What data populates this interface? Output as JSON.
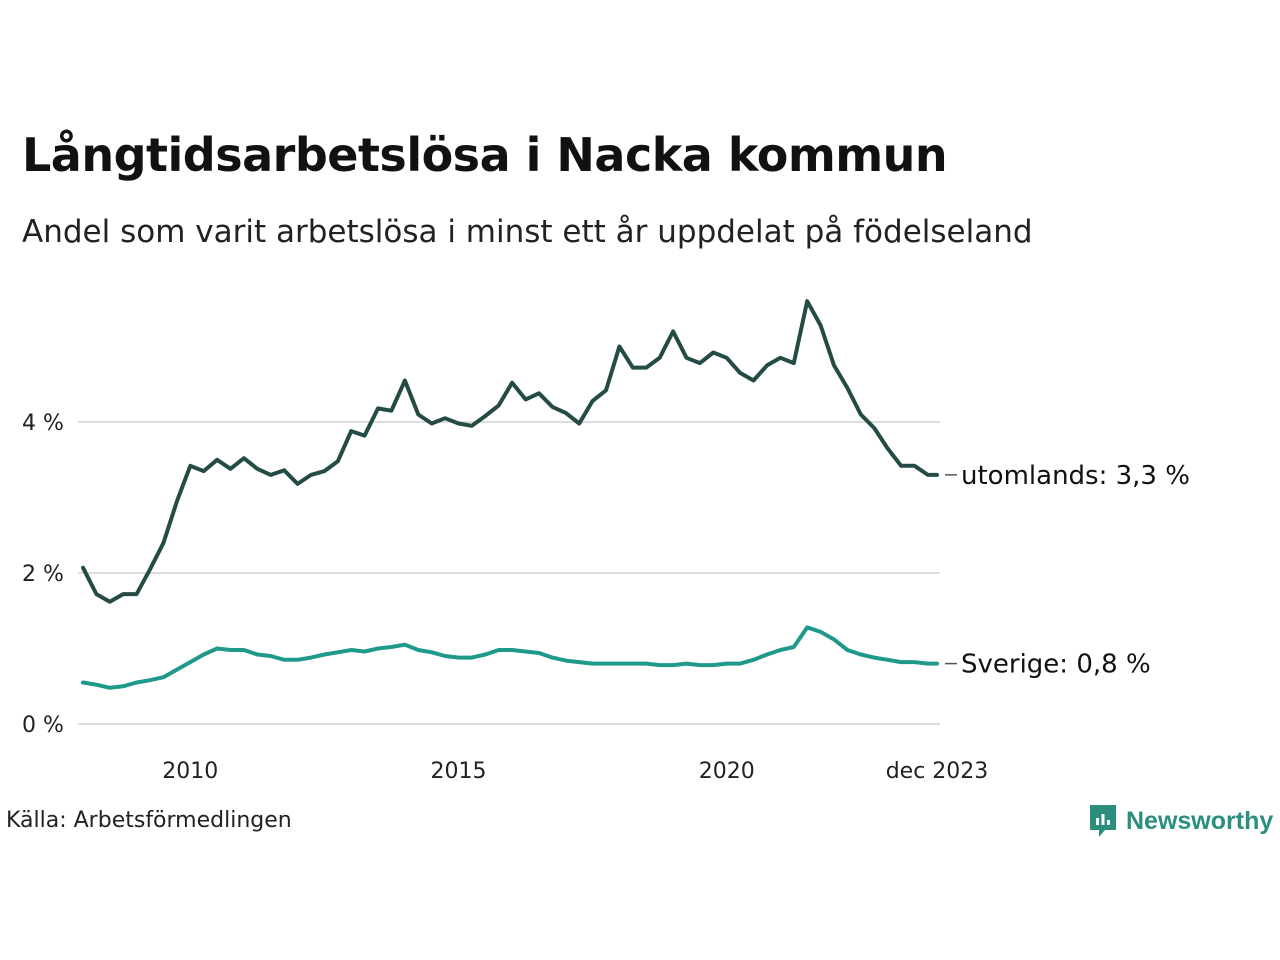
{
  "title": "Långtidsarbetslösa i Nacka kommun",
  "subtitle": "Andel som varit arbetslösa i minst ett år uppdelat på födelseland",
  "source": "Källa: Arbetsförmedlingen",
  "brand": {
    "name": "Newsworthy",
    "icon": "newsworthy-logo-icon",
    "color": "#2a8f7c"
  },
  "colors": {
    "utomlands": "#244b45",
    "sverige": "#1f9a8a",
    "grid": "#dddddd"
  },
  "chart_data": {
    "type": "line",
    "title": "Långtidsarbetslösa i Nacka kommun",
    "xlabel": "",
    "ylabel": "",
    "xlim": [
      2008.0,
      2023.92
    ],
    "ylim": [
      0,
      6
    ],
    "grid": true,
    "y_ticks": [
      {
        "value": 0,
        "label": "0 %"
      },
      {
        "value": 2,
        "label": "2 %"
      },
      {
        "value": 4,
        "label": "4 %"
      }
    ],
    "x_ticks": [
      {
        "value": 2010,
        "label": "2010"
      },
      {
        "value": 2015,
        "label": "2015"
      },
      {
        "value": 2020,
        "label": "2020"
      },
      {
        "value": 2023.92,
        "label": "dec 2023"
      }
    ],
    "series": [
      {
        "name": "utomlands",
        "end_label": "utomlands: 3,3 %",
        "color": "#244b45",
        "x": [
          2008.0,
          2008.25,
          2008.5,
          2008.75,
          2009.0,
          2009.25,
          2009.5,
          2009.75,
          2010.0,
          2010.25,
          2010.5,
          2010.75,
          2011.0,
          2011.25,
          2011.5,
          2011.75,
          2012.0,
          2012.25,
          2012.5,
          2012.75,
          2013.0,
          2013.25,
          2013.5,
          2013.75,
          2014.0,
          2014.25,
          2014.5,
          2014.75,
          2015.0,
          2015.25,
          2015.5,
          2015.75,
          2016.0,
          2016.25,
          2016.5,
          2016.75,
          2017.0,
          2017.25,
          2017.5,
          2017.75,
          2018.0,
          2018.25,
          2018.5,
          2018.75,
          2019.0,
          2019.25,
          2019.5,
          2019.75,
          2020.0,
          2020.25,
          2020.5,
          2020.75,
          2021.0,
          2021.25,
          2021.5,
          2021.75,
          2022.0,
          2022.25,
          2022.5,
          2022.75,
          2023.0,
          2023.25,
          2023.5,
          2023.75,
          2023.92
        ],
        "values": [
          2.07,
          1.72,
          1.62,
          1.72,
          1.72,
          2.05,
          2.4,
          2.95,
          3.42,
          3.35,
          3.5,
          3.38,
          3.52,
          3.38,
          3.3,
          3.36,
          3.18,
          3.3,
          3.35,
          3.48,
          3.88,
          3.82,
          4.18,
          4.15,
          4.55,
          4.1,
          3.98,
          4.05,
          3.98,
          3.95,
          4.08,
          4.22,
          4.52,
          4.3,
          4.38,
          4.2,
          4.12,
          3.98,
          4.28,
          4.42,
          5.0,
          4.72,
          4.72,
          4.85,
          5.2,
          4.85,
          4.78,
          4.92,
          4.85,
          4.65,
          4.55,
          4.75,
          4.85,
          4.78,
          5.6,
          5.28,
          4.75,
          4.45,
          4.1,
          3.92,
          3.65,
          3.42,
          3.42,
          3.3,
          3.3
        ]
      },
      {
        "name": "Sverige",
        "end_label": "Sverige: 0,8 %",
        "color": "#1f9a8a",
        "x": [
          2008.0,
          2008.25,
          2008.5,
          2008.75,
          2009.0,
          2009.25,
          2009.5,
          2009.75,
          2010.0,
          2010.25,
          2010.5,
          2010.75,
          2011.0,
          2011.25,
          2011.5,
          2011.75,
          2012.0,
          2012.25,
          2012.5,
          2012.75,
          2013.0,
          2013.25,
          2013.5,
          2013.75,
          2014.0,
          2014.25,
          2014.5,
          2014.75,
          2015.0,
          2015.25,
          2015.5,
          2015.75,
          2016.0,
          2016.25,
          2016.5,
          2016.75,
          2017.0,
          2017.25,
          2017.5,
          2017.75,
          2018.0,
          2018.25,
          2018.5,
          2018.75,
          2019.0,
          2019.25,
          2019.5,
          2019.75,
          2020.0,
          2020.25,
          2020.5,
          2020.75,
          2021.0,
          2021.25,
          2021.5,
          2021.75,
          2022.0,
          2022.25,
          2022.5,
          2022.75,
          2023.0,
          2023.25,
          2023.5,
          2023.75,
          2023.92
        ],
        "values": [
          0.55,
          0.52,
          0.48,
          0.5,
          0.55,
          0.58,
          0.62,
          0.72,
          0.82,
          0.92,
          1.0,
          0.98,
          0.98,
          0.92,
          0.9,
          0.85,
          0.85,
          0.88,
          0.92,
          0.95,
          0.98,
          0.96,
          1.0,
          1.02,
          1.05,
          0.98,
          0.95,
          0.9,
          0.88,
          0.88,
          0.92,
          0.98,
          0.98,
          0.96,
          0.94,
          0.88,
          0.84,
          0.82,
          0.8,
          0.8,
          0.8,
          0.8,
          0.8,
          0.78,
          0.78,
          0.8,
          0.78,
          0.78,
          0.8,
          0.8,
          0.85,
          0.92,
          0.98,
          1.02,
          1.28,
          1.22,
          1.12,
          0.98,
          0.92,
          0.88,
          0.85,
          0.82,
          0.82,
          0.8,
          0.8
        ]
      }
    ]
  }
}
